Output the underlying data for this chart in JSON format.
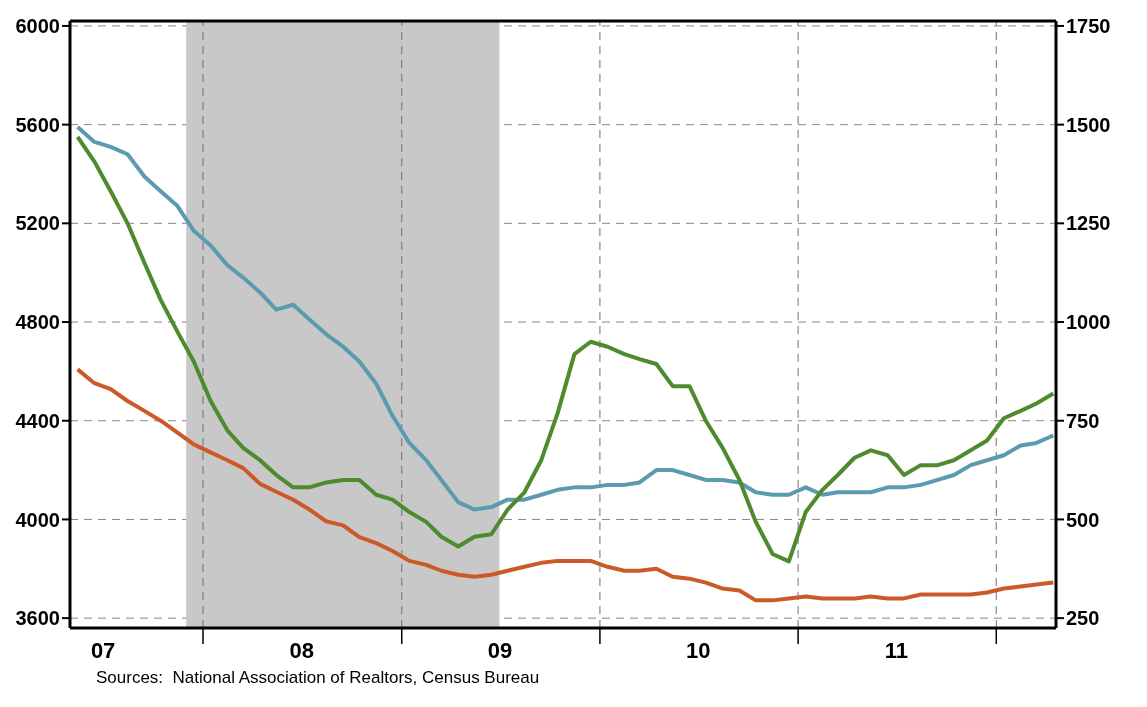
{
  "chart_data": {
    "type": "line",
    "x": [
      "2007-05-15",
      "2007-06-15",
      "2007-07-15",
      "2007-08-15",
      "2007-09-15",
      "2007-10-15",
      "2007-11-15",
      "2007-12-15",
      "2008-01-15",
      "2008-02-15",
      "2008-03-15",
      "2008-04-15",
      "2008-05-15",
      "2008-06-15",
      "2008-07-15",
      "2008-08-15",
      "2008-09-15",
      "2008-10-15",
      "2008-11-15",
      "2008-12-15",
      "2009-01-15",
      "2009-02-15",
      "2009-03-15",
      "2009-04-15",
      "2009-05-15",
      "2009-06-15",
      "2009-07-15",
      "2009-08-15",
      "2009-09-15",
      "2009-10-15",
      "2009-11-15",
      "2009-12-15",
      "2010-01-15",
      "2010-02-15",
      "2010-03-15",
      "2010-04-15",
      "2010-05-15",
      "2010-06-15",
      "2010-07-15",
      "2010-08-15",
      "2010-09-15",
      "2010-10-15",
      "2010-11-15",
      "2010-12-15",
      "2011-01-15",
      "2011-02-15",
      "2011-03-15",
      "2011-04-15",
      "2011-05-15",
      "2011-06-15",
      "2011-07-15",
      "2011-08-15",
      "2011-09-15",
      "2011-10-15",
      "2011-11-15",
      "2011-12-15",
      "2012-01-15",
      "2012-02-15",
      "2012-03-15",
      "2012-04-15"
    ],
    "series": [
      {
        "color": "#5b9bb0",
        "values": [
          5590,
          5530,
          5510,
          5480,
          5390,
          5330,
          5270,
          5170,
          5110,
          5030,
          4980,
          4920,
          4850,
          4870,
          4810,
          4750,
          4700,
          4640,
          4550,
          4420,
          4310,
          4240,
          4160,
          4070,
          4040,
          4050,
          4080,
          4080,
          4100,
          4120,
          4130,
          4130,
          4140,
          4140,
          4150,
          4200,
          4200,
          4180,
          4160,
          4160,
          4150,
          4110,
          4100,
          4100,
          4130,
          4100,
          4110,
          4110,
          4110,
          4130,
          4130,
          4140,
          4160,
          4180,
          4220,
          4240,
          4260,
          4300,
          4310,
          4340
        ]
      },
      {
        "color": "#cc5a28",
        "axis": "y2",
        "values": [
          880,
          845,
          830,
          800,
          775,
          750,
          720,
          690,
          670,
          650,
          630,
          590,
          570,
          550,
          525,
          495,
          485,
          455,
          440,
          420,
          395,
          385,
          370,
          360,
          355,
          360,
          370,
          380,
          390,
          395,
          395,
          395,
          380,
          370,
          370,
          375,
          355,
          350,
          340,
          325,
          320,
          295,
          295,
          300,
          305,
          300,
          300,
          300,
          305,
          300,
          300,
          310,
          310,
          310,
          310,
          315,
          325,
          330,
          335,
          340
        ]
      },
      {
        "color": "#4e8a2e",
        "values": [
          5550,
          5450,
          5330,
          5200,
          5040,
          4890,
          4760,
          4640,
          4480,
          4360,
          4290,
          4240,
          4180,
          4130,
          4130,
          4150,
          4160,
          4160,
          4100,
          4080,
          4030,
          3990,
          3930,
          3890,
          3930,
          3940,
          4040,
          4110,
          4240,
          4430,
          4670,
          4720,
          4700,
          4670,
          4650,
          4630,
          4540,
          4540,
          4400,
          4290,
          4160,
          3990,
          3860,
          3830,
          4030,
          4120,
          4180,
          4250,
          4280,
          4260,
          4180,
          4220,
          4220,
          4240,
          4280,
          4320,
          4410,
          4440,
          4470,
          4510
        ]
      }
    ],
    "xlim": [
      "2007-05-01",
      "2012-04-20"
    ],
    "xticks": [
      {
        "value": "2007-07-01",
        "label": "07"
      },
      {
        "value": "2008-01-01",
        "label": null
      },
      {
        "value": "2008-07-01",
        "label": "08"
      },
      {
        "value": "2009-01-01",
        "label": null
      },
      {
        "value": "2009-07-01",
        "label": "09"
      },
      {
        "value": "2010-01-01",
        "label": null
      },
      {
        "value": "2010-07-01",
        "label": "10"
      },
      {
        "value": "2011-01-01",
        "label": null
      },
      {
        "value": "2011-07-01",
        "label": "11"
      },
      {
        "value": "2012-01-01",
        "label": null
      }
    ],
    "ylim": [
      3560,
      6020
    ],
    "yticks": [
      3600,
      4000,
      4400,
      4800,
      5200,
      5600,
      6000
    ],
    "y2lim": [
      225,
      1762.5
    ],
    "y2ticks": [
      250,
      500,
      750,
      1000,
      1250,
      1500,
      1750
    ],
    "grid": "y",
    "line_style": "solid",
    "marker": "none",
    "bands": [
      {
        "axis": "x",
        "from": "2007-12-01",
        "to": "2009-06-30",
        "color": "#c8c8c8"
      }
    ],
    "ref_lines": [
      {
        "axis": "x",
        "value": "2008-01-01",
        "color": "#707070",
        "line_style": "dashed"
      },
      {
        "axis": "x",
        "value": "2009-01-01",
        "color": "#707070",
        "line_style": "dashed"
      },
      {
        "axis": "x",
        "value": "2010-01-01",
        "color": "#707070",
        "line_style": "dashed"
      },
      {
        "axis": "x",
        "value": "2011-01-01",
        "color": "#707070",
        "line_style": "dashed"
      },
      {
        "axis": "x",
        "value": "2012-01-01",
        "color": "#707070",
        "line_style": "dashed"
      }
    ],
    "annotations": [
      "Sources:  National Association of Realtors, Census Bureau"
    ]
  }
}
